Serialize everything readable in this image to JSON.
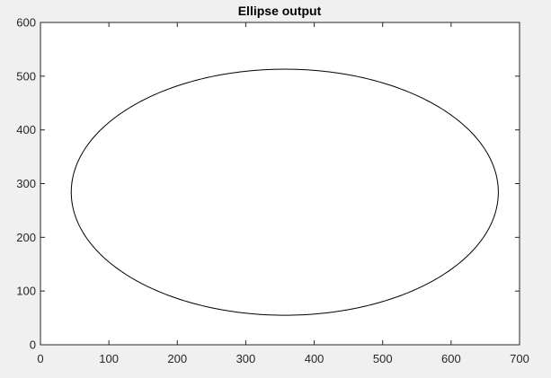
{
  "chart_data": {
    "type": "line",
    "title": "Ellipse output",
    "xlabel": "",
    "ylabel": "",
    "xlim": [
      0,
      700
    ],
    "ylim": [
      0,
      600
    ],
    "x_ticks": [
      0,
      100,
      200,
      300,
      400,
      500,
      600,
      700
    ],
    "y_ticks": [
      0,
      100,
      200,
      300,
      400,
      500,
      600
    ],
    "grid": false,
    "legend": "none",
    "series": [
      {
        "shape": "ellipse",
        "center": [
          357,
          284
        ],
        "semi_axis_x": 312,
        "semi_axis_y": 229,
        "rotation_deg": 0,
        "color": "#000000"
      }
    ]
  },
  "colors": {
    "figure_background": "#f0f0f0",
    "axes_background": "#ffffff",
    "axes_edge": "#262626",
    "curve": "#000000"
  }
}
